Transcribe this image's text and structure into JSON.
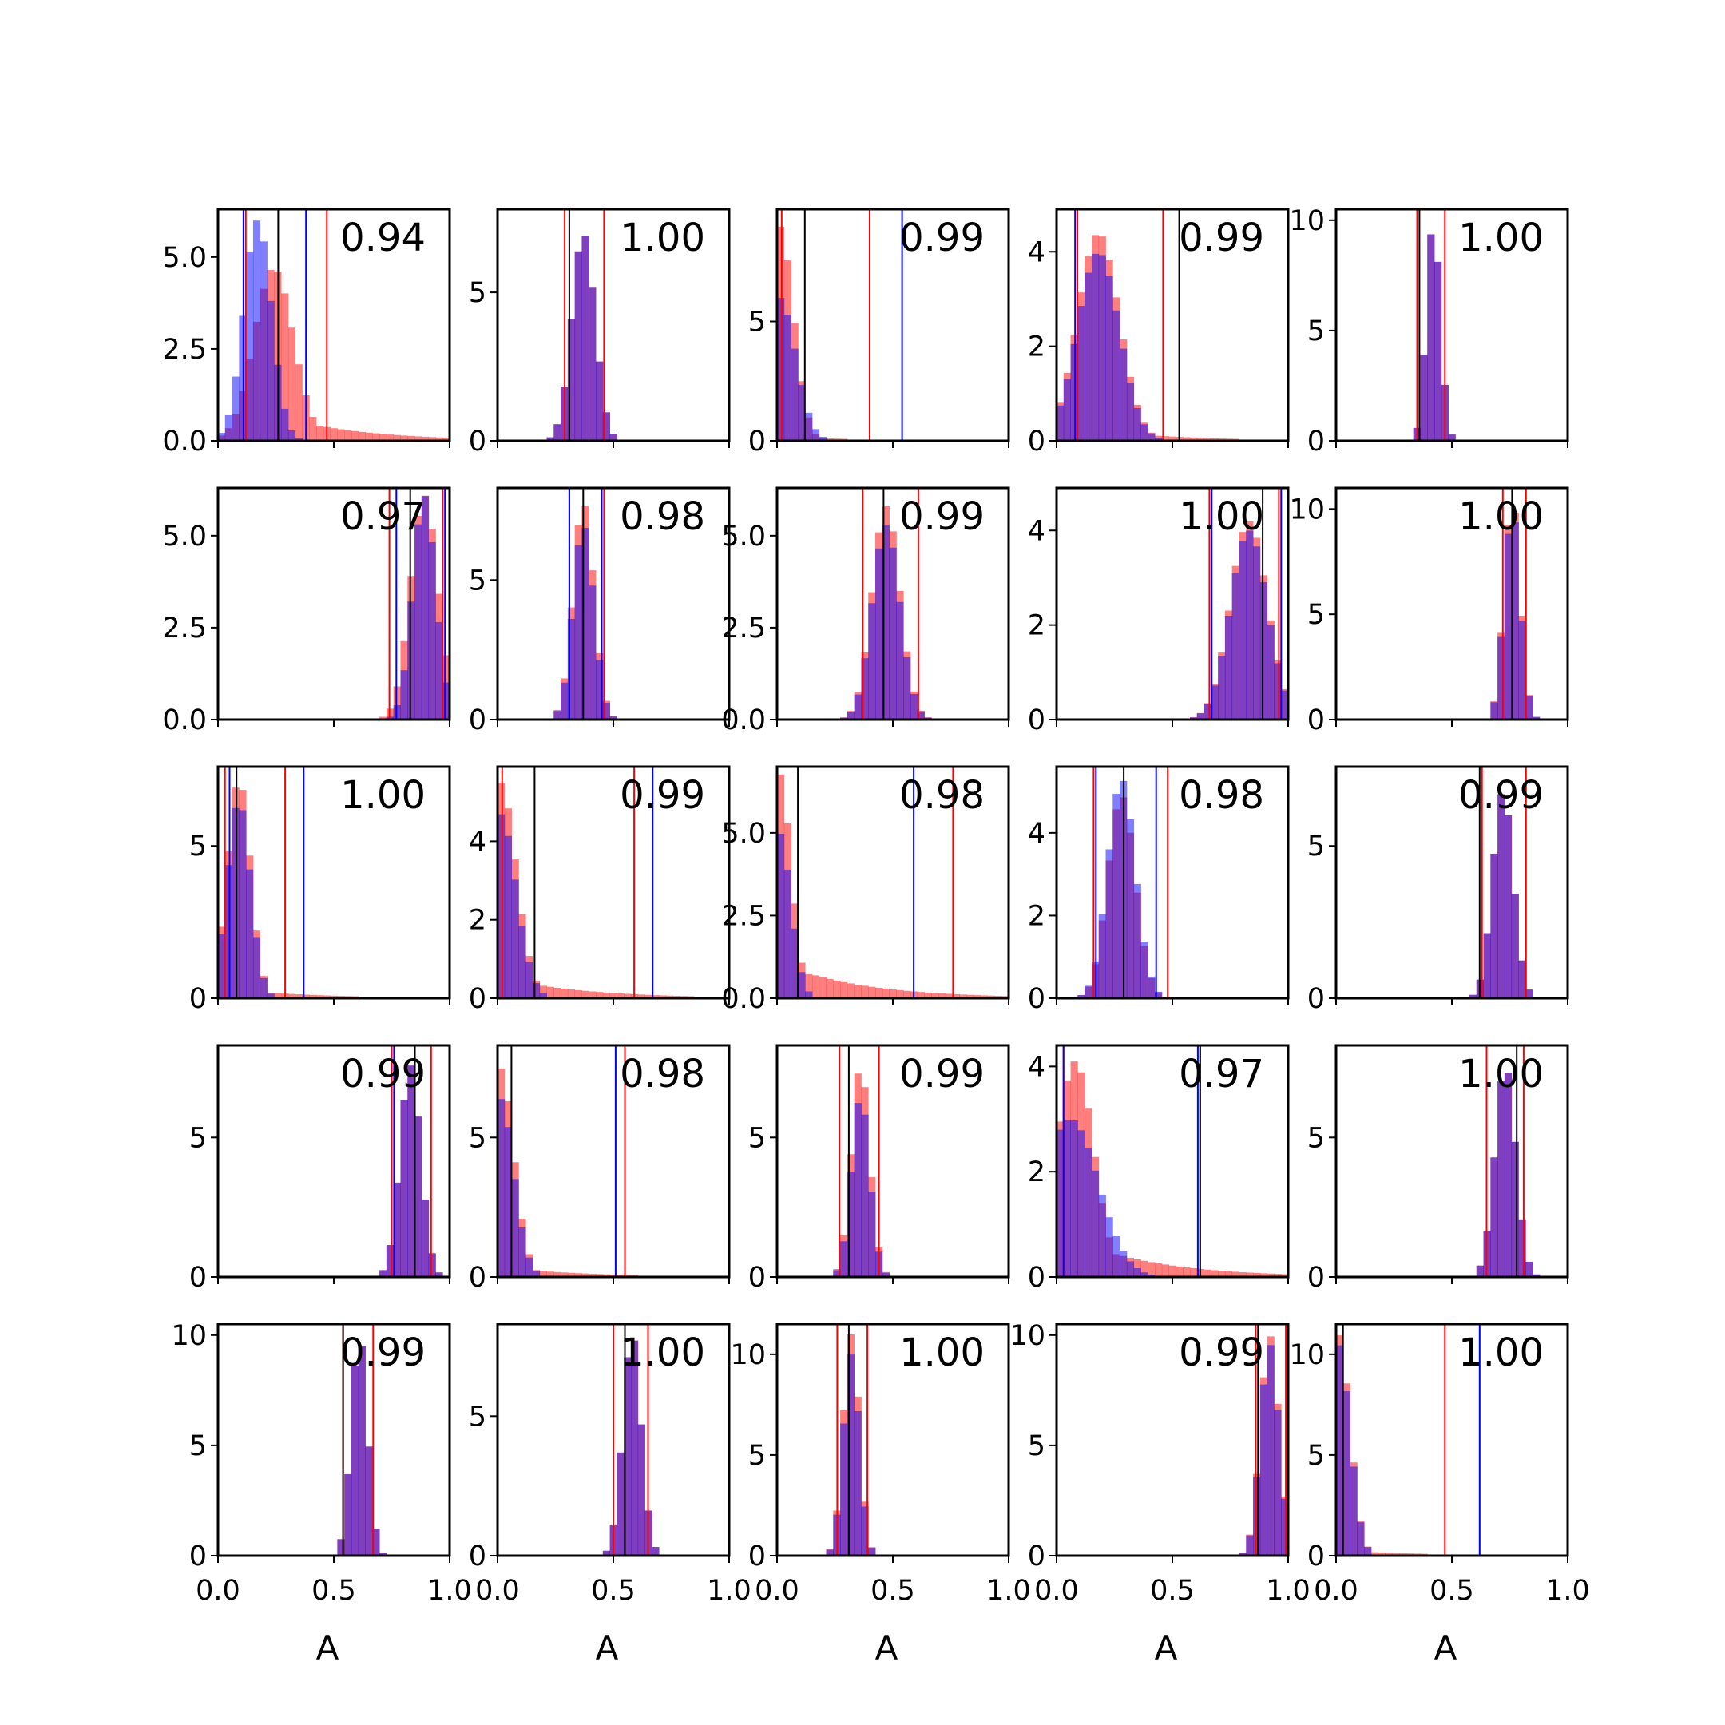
{
  "chart_data": {
    "type": "histogram-grid",
    "rows": 5,
    "cols": 5,
    "xlabel": "A",
    "xlim": [
      0,
      1
    ],
    "x_ticks": [
      "0.0",
      "0.5",
      "1.0"
    ],
    "colors": {
      "red": "#ff0000",
      "blue": "#0000ff",
      "overlap": "#8040c0",
      "median": "#000000",
      "frame": "#000000"
    },
    "hist_style": {
      "red_opacity": 0.5,
      "blue_opacity": 0.5,
      "bin_width": 0.03,
      "bins": 33
    },
    "panels": [
      {
        "row": 0,
        "col": 0,
        "score": "0.94",
        "ylim": [
          0,
          6.3
        ],
        "yticks": [
          "0.0",
          "2.5",
          "5.0"
        ],
        "ytick_values": [
          0,
          2.5,
          5.0
        ],
        "red_peak": 0.24,
        "red_spread": 0.085,
        "red_height": 4.7,
        "red_tail": 0.8,
        "blue_peak": 0.17,
        "blue_spread": 0.06,
        "blue_height": 6.0,
        "median": 0.26,
        "red_lines": [
          0.12,
          0.47
        ],
        "blue_lines": [
          0.11,
          0.38
        ]
      },
      {
        "row": 0,
        "col": 1,
        "score": "1.00",
        "ylim": [
          0,
          7.8
        ],
        "yticks": [
          "0",
          "5"
        ],
        "ytick_values": [
          0,
          5
        ],
        "red_peak": 0.37,
        "red_spread": 0.05,
        "red_height": 7.0,
        "red_tail": 0,
        "blue_peak": 0.37,
        "blue_spread": 0.05,
        "blue_height": 7.0,
        "median": 0.31,
        "red_lines": [
          0.29,
          0.46
        ],
        "blue_lines": []
      },
      {
        "row": 0,
        "col": 2,
        "score": "0.99",
        "ylim": [
          0,
          9.7
        ],
        "yticks": [
          "0",
          "5"
        ],
        "ytick_values": [
          0,
          5
        ],
        "red_peak": 0.01,
        "red_spread": 0.06,
        "red_height": 9.0,
        "red_tail": 0.2,
        "blue_peak": 0.01,
        "blue_spread": 0.07,
        "blue_height": 6.0,
        "median": 0.12,
        "red_lines": [
          0.02,
          0.4
        ],
        "blue_lines": [
          0.54
        ]
      },
      {
        "row": 0,
        "col": 3,
        "score": "0.99",
        "ylim": [
          0,
          4.9
        ],
        "yticks": [
          "0",
          "2",
          "4"
        ],
        "ytick_values": [
          0,
          2,
          4
        ],
        "red_peak": 0.18,
        "red_spread": 0.09,
        "red_height": 4.4,
        "red_tail": 0.25,
        "blue_peak": 0.18,
        "blue_spread": 0.09,
        "blue_height": 4.0,
        "median": 0.53,
        "red_lines": [
          0.09,
          0.46
        ],
        "blue_lines": [
          0.08,
          0.53
        ]
      },
      {
        "row": 0,
        "col": 4,
        "score": "1.00",
        "ylim": [
          0,
          10.5
        ],
        "yticks": [
          "0",
          "5",
          "10"
        ],
        "ytick_values": [
          0,
          5,
          10
        ],
        "red_peak": 0.42,
        "red_spread": 0.03,
        "red_height": 10.0,
        "red_tail": 0,
        "blue_peak": 0.42,
        "blue_spread": 0.03,
        "blue_height": 10.0,
        "median": 0.36,
        "red_lines": [
          0.35,
          0.47
        ],
        "blue_lines": []
      },
      {
        "row": 1,
        "col": 0,
        "score": "0.97",
        "ylim": [
          0,
          6.3
        ],
        "yticks": [
          "0.0",
          "2.5",
          "5.0"
        ],
        "ytick_values": [
          0,
          2.5,
          5.0
        ],
        "red_peak": 0.89,
        "red_spread": 0.06,
        "red_height": 6.1,
        "red_tail": 0,
        "blue_peak": 0.89,
        "blue_spread": 0.05,
        "blue_height": 6.1,
        "median": 0.83,
        "red_lines": [
          0.74,
          0.97
        ],
        "blue_lines": [
          0.77,
          0.98
        ]
      },
      {
        "row": 1,
        "col": 1,
        "score": "0.98",
        "ylim": [
          0,
          8.3
        ],
        "yticks": [
          "0",
          "5"
        ],
        "ytick_values": [
          0,
          5
        ],
        "red_peak": 0.37,
        "red_spread": 0.045,
        "red_height": 7.8,
        "red_tail": 0,
        "blue_peak": 0.37,
        "blue_spread": 0.045,
        "blue_height": 7.0,
        "median": 0.37,
        "red_lines": [
          0.31,
          0.46
        ],
        "blue_lines": [
          0.31,
          0.45
        ]
      },
      {
        "row": 1,
        "col": 2,
        "score": "0.99",
        "ylim": [
          0,
          6.3
        ],
        "yticks": [
          "0.0",
          "2.5",
          "5.0"
        ],
        "ytick_values": [
          0,
          2.5,
          5.0
        ],
        "red_peak": 0.47,
        "red_spread": 0.06,
        "red_height": 5.8,
        "red_tail": 0,
        "blue_peak": 0.47,
        "blue_spread": 0.06,
        "blue_height": 5.3,
        "median": 0.46,
        "red_lines": [
          0.37,
          0.61
        ],
        "blue_lines": []
      },
      {
        "row": 1,
        "col": 3,
        "score": "1.00",
        "ylim": [
          0,
          4.9
        ],
        "yticks": [
          "0",
          "2",
          "4"
        ],
        "ytick_values": [
          0,
          2,
          4
        ],
        "red_peak": 0.83,
        "red_spread": 0.08,
        "red_height": 4.2,
        "red_tail": 0,
        "blue_peak": 0.83,
        "blue_spread": 0.08,
        "blue_height": 4.0,
        "median": 0.89,
        "red_lines": [
          0.66,
          0.96
        ],
        "blue_lines": [
          0.67,
          0.97
        ]
      },
      {
        "row": 1,
        "col": 4,
        "score": "1.00",
        "ylim": [
          0,
          11.0
        ],
        "yticks": [
          "0",
          "5",
          "10"
        ],
        "ytick_values": [
          0,
          5,
          10
        ],
        "red_peak": 0.76,
        "red_spread": 0.035,
        "red_height": 10.5,
        "red_tail": 0,
        "blue_peak": 0.76,
        "blue_spread": 0.035,
        "blue_height": 10.0,
        "median": 0.76,
        "red_lines": [
          0.72,
          0.82
        ],
        "blue_lines": []
      },
      {
        "row": 2,
        "col": 0,
        "score": "1.00",
        "ylim": [
          0,
          7.6
        ],
        "yticks": [
          "0",
          "5"
        ],
        "ytick_values": [
          0,
          5
        ],
        "red_peak": 0.09,
        "red_spread": 0.05,
        "red_height": 7.2,
        "red_tail": 0.3,
        "blue_peak": 0.09,
        "blue_spread": 0.05,
        "blue_height": 6.5,
        "median": 0.08,
        "red_lines": [
          0.03,
          0.29
        ],
        "blue_lines": [
          0.05,
          0.37
        ]
      },
      {
        "row": 2,
        "col": 1,
        "score": "0.99",
        "ylim": [
          0,
          5.9
        ],
        "yticks": [
          "0",
          "2",
          "4"
        ],
        "ytick_values": [
          0,
          2,
          4
        ],
        "red_peak": 0.01,
        "red_spread": 0.07,
        "red_height": 5.5,
        "red_tail": 0.6,
        "blue_peak": 0.01,
        "blue_spread": 0.07,
        "blue_height": 4.7,
        "median": 0.16,
        "red_lines": [
          0.02,
          0.59
        ],
        "blue_lines": [
          0.67
        ]
      },
      {
        "row": 2,
        "col": 2,
        "score": "0.98",
        "ylim": [
          0,
          7.0
        ],
        "yticks": [
          "0.0",
          "2.5",
          "5.0"
        ],
        "ytick_values": [
          0,
          2.5,
          5.0
        ],
        "red_peak": 0.01,
        "red_spread": 0.05,
        "red_height": 6.8,
        "red_tail": 1.2,
        "blue_peak": 0.01,
        "blue_spread": 0.05,
        "blue_height": 5.0,
        "median": 0.09,
        "red_lines": [
          0.76
        ],
        "blue_lines": [
          0.59
        ]
      },
      {
        "row": 2,
        "col": 3,
        "score": "0.98",
        "ylim": [
          0,
          5.6
        ],
        "yticks": [
          "0",
          "2",
          "4"
        ],
        "ytick_values": [
          0,
          2,
          4
        ],
        "red_peak": 0.28,
        "red_spread": 0.06,
        "red_height": 4.9,
        "red_tail": 0,
        "blue_peak": 0.28,
        "blue_spread": 0.06,
        "blue_height": 5.3,
        "median": 0.29,
        "red_lines": [
          0.16,
          0.48
        ],
        "blue_lines": [
          0.17,
          0.43
        ]
      },
      {
        "row": 2,
        "col": 4,
        "score": "0.99",
        "ylim": [
          0,
          7.6
        ],
        "yticks": [
          "0",
          "5"
        ],
        "ytick_values": [
          0,
          5
        ],
        "red_peak": 0.72,
        "red_spread": 0.045,
        "red_height": 6.8,
        "red_tail": 0,
        "blue_peak": 0.72,
        "blue_spread": 0.045,
        "blue_height": 6.8,
        "median": 0.62,
        "red_lines": [
          0.63,
          0.82
        ],
        "blue_lines": []
      },
      {
        "row": 3,
        "col": 0,
        "score": "0.99",
        "ylim": [
          0,
          8.3
        ],
        "yticks": [
          "0",
          "5"
        ],
        "ytick_values": [
          0,
          5
        ],
        "red_peak": 0.83,
        "red_spread": 0.045,
        "red_height": 7.6,
        "red_tail": 0,
        "blue_peak": 0.83,
        "blue_spread": 0.045,
        "blue_height": 7.6,
        "median": 0.85,
        "red_lines": [
          0.75,
          0.92
        ],
        "blue_lines": [
          0.76
        ]
      },
      {
        "row": 3,
        "col": 1,
        "score": "0.98",
        "ylim": [
          0,
          8.3
        ],
        "yticks": [
          "0",
          "5"
        ],
        "ytick_values": [
          0,
          5
        ],
        "red_peak": 0.01,
        "red_spread": 0.06,
        "red_height": 7.5,
        "red_tail": 0.4,
        "blue_peak": 0.01,
        "blue_spread": 0.06,
        "blue_height": 6.4,
        "median": 0.06,
        "red_lines": [
          0.55
        ],
        "blue_lines": [
          0.51
        ]
      },
      {
        "row": 3,
        "col": 2,
        "score": "0.99",
        "ylim": [
          0,
          8.3
        ],
        "yticks": [
          "0",
          "5"
        ],
        "ytick_values": [
          0,
          5
        ],
        "red_peak": 0.36,
        "red_spread": 0.04,
        "red_height": 7.6,
        "red_tail": 0,
        "blue_peak": 0.36,
        "blue_spread": 0.04,
        "blue_height": 6.5,
        "median": 0.31,
        "red_lines": [
          0.27,
          0.44
        ],
        "blue_lines": []
      },
      {
        "row": 3,
        "col": 3,
        "score": "0.97",
        "ylim": [
          0,
          4.4
        ],
        "yticks": [
          "0",
          "2",
          "4"
        ],
        "ytick_values": [
          0,
          2,
          4
        ],
        "red_peak": 0.08,
        "red_spread": 0.08,
        "red_height": 4.1,
        "red_tail": 0.8,
        "blue_peak": 0.06,
        "blue_spread": 0.12,
        "blue_height": 3.0,
        "median": 0.62,
        "red_lines": [
          0.03,
          0.62
        ],
        "blue_lines": [
          0.03,
          0.61
        ]
      },
      {
        "row": 3,
        "col": 4,
        "score": "1.00",
        "ylim": [
          0,
          8.3
        ],
        "yticks": [
          "0",
          "5"
        ],
        "ytick_values": [
          0,
          5
        ],
        "red_peak": 0.73,
        "red_spread": 0.045,
        "red_height": 7.6,
        "red_tail": 0,
        "blue_peak": 0.73,
        "blue_spread": 0.045,
        "blue_height": 7.6,
        "median": 0.78,
        "red_lines": [
          0.65,
          0.81
        ],
        "blue_lines": []
      },
      {
        "row": 4,
        "col": 0,
        "score": "0.99",
        "ylim": [
          0,
          10.5
        ],
        "yticks": [
          "0",
          "5",
          "10"
        ],
        "ytick_values": [
          0,
          5,
          10
        ],
        "red_peak": 0.61,
        "red_spread": 0.035,
        "red_height": 10.0,
        "red_tail": 0,
        "blue_peak": 0.61,
        "blue_spread": 0.035,
        "blue_height": 10.0,
        "median": 0.54,
        "red_lines": [
          0.54,
          0.67
        ],
        "blue_lines": []
      },
      {
        "row": 4,
        "col": 1,
        "score": "1.00",
        "ylim": [
          0,
          8.3
        ],
        "yticks": [
          "0",
          "5"
        ],
        "ytick_values": [
          0,
          5
        ],
        "red_peak": 0.58,
        "red_spread": 0.04,
        "red_height": 8.0,
        "red_tail": 0,
        "blue_peak": 0.58,
        "blue_spread": 0.04,
        "blue_height": 8.0,
        "median": 0.55,
        "red_lines": [
          0.5,
          0.65
        ],
        "blue_lines": []
      },
      {
        "row": 4,
        "col": 2,
        "score": "1.00",
        "ylim": [
          0,
          11.5
        ],
        "yticks": [
          "0",
          "5",
          "10"
        ],
        "ytick_values": [
          0,
          5,
          10
        ],
        "red_peak": 0.32,
        "red_spread": 0.035,
        "red_height": 11.0,
        "red_tail": 0,
        "blue_peak": 0.32,
        "blue_spread": 0.035,
        "blue_height": 10.0,
        "median": 0.31,
        "red_lines": [
          0.26,
          0.39
        ],
        "blue_lines": []
      },
      {
        "row": 4,
        "col": 3,
        "score": "0.99",
        "ylim": [
          0,
          10.5
        ],
        "yticks": [
          "0",
          "5",
          "10"
        ],
        "ytick_values": [
          0,
          5,
          10
        ],
        "red_peak": 0.92,
        "red_spread": 0.04,
        "red_height": 10.0,
        "red_tail": 0,
        "blue_peak": 0.92,
        "blue_spread": 0.04,
        "blue_height": 9.6,
        "median": 0.87,
        "red_lines": [
          0.86,
          0.99
        ],
        "blue_lines": []
      },
      {
        "row": 4,
        "col": 4,
        "score": "1.00",
        "ylim": [
          0,
          11.5
        ],
        "yticks": [
          "0",
          "5",
          "10"
        ],
        "ytick_values": [
          0,
          5,
          10
        ],
        "red_peak": 0.01,
        "red_spread": 0.05,
        "red_height": 11.0,
        "red_tail": 0.3,
        "blue_peak": 0.01,
        "blue_spread": 0.05,
        "blue_height": 10.5,
        "median": 0.03,
        "red_lines": [
          0.47
        ],
        "blue_lines": [
          0.62
        ]
      }
    ]
  }
}
